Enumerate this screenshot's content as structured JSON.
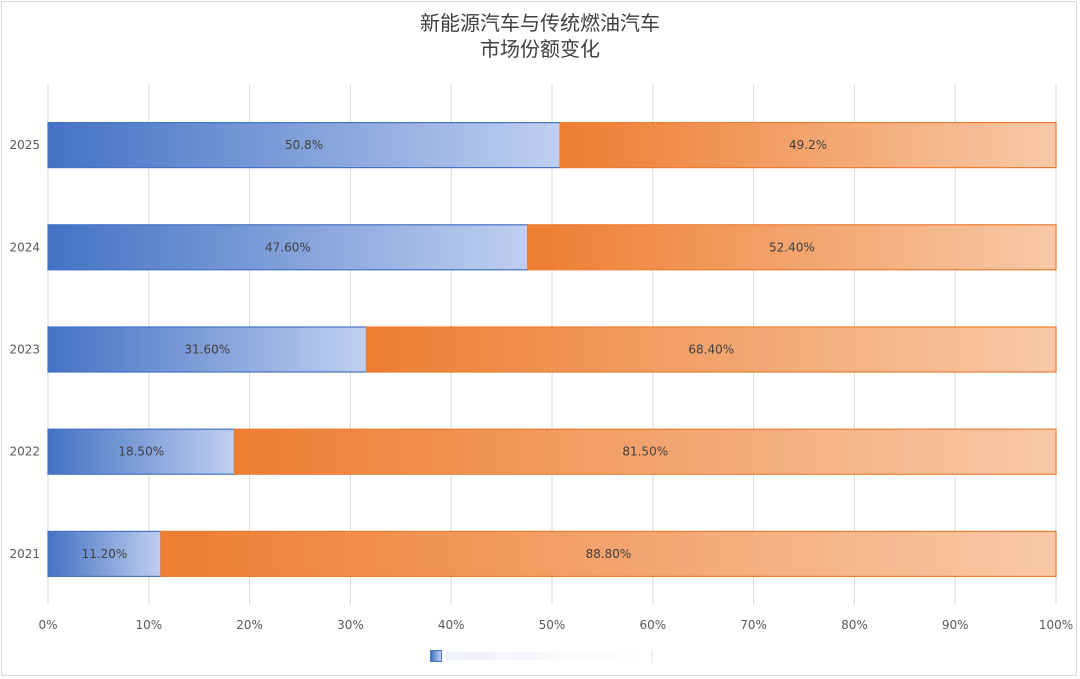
{
  "chart_data": {
    "type": "bar",
    "orientation": "horizontal",
    "stacked": true,
    "title_line1": "新能源汽车与传统燃油汽车",
    "title_line2": "市场份额变化",
    "categories": [
      "2025",
      "2024",
      "2023",
      "2022",
      "2021"
    ],
    "series": [
      {
        "name": "新能源汽车",
        "values": [
          50.8,
          47.6,
          31.6,
          18.5,
          11.2
        ],
        "labels": [
          "50.8%",
          "47.60%",
          "31.60%",
          "18.50%",
          "11.20%"
        ],
        "color": "#4472c4",
        "color_light": "#c0cff0"
      },
      {
        "name": "传统燃油汽车",
        "values": [
          49.2,
          52.4,
          68.4,
          81.5,
          88.8
        ],
        "labels": [
          "49.2%",
          "52.40%",
          "68.40%",
          "81.50%",
          "88.80%"
        ],
        "color": "#ed7d31",
        "color_light": "#f8c9a8"
      }
    ],
    "xlim": [
      0,
      100
    ],
    "xticks": [
      "0%",
      "10%",
      "20%",
      "30%",
      "40%",
      "50%",
      "60%",
      "70%",
      "80%",
      "90%",
      "100%"
    ],
    "grid": true,
    "legend": {
      "position": "bottom",
      "text": "|"
    }
  }
}
